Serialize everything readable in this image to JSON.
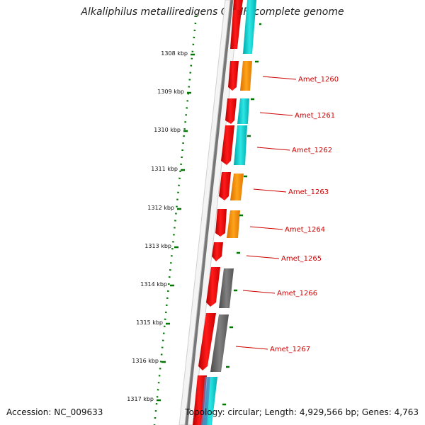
{
  "title": "Alkaliphilus metalliredigens QYMF, complete genome",
  "accession": "Accession: NC_009633",
  "summary": "Topology: circular; Length: 4,929,566 bp; Genes: 4,763",
  "ticks": [
    "1308 kbp",
    "1309 kbp",
    "1310 kbp",
    "1311 kbp",
    "1312 kbp",
    "1313 kbp",
    "1314 kbp",
    "1315 kbp",
    "1316 kbp",
    "1317 kbp"
  ],
  "genes": [
    {
      "label": "Amet_1260",
      "color": "#ff8c00"
    },
    {
      "label": "Amet_1261",
      "color": "#00c8c8"
    },
    {
      "label": "Amet_1262",
      "color": "#00c8c8"
    },
    {
      "label": "Amet_1263",
      "color": "#ff8c00"
    },
    {
      "label": "Amet_1264",
      "color": "#ff8c00"
    },
    {
      "label": "Amet_1265",
      "color": "#00c8c8"
    },
    {
      "label": "Amet_1266",
      "color": "#606060"
    },
    {
      "label": "Amet_1267",
      "color": "#606060"
    }
  ],
  "colors": {
    "cds": "#ff0000",
    "gene_label": "#cc0000",
    "tick": "#007700",
    "backbone": "#808080"
  }
}
